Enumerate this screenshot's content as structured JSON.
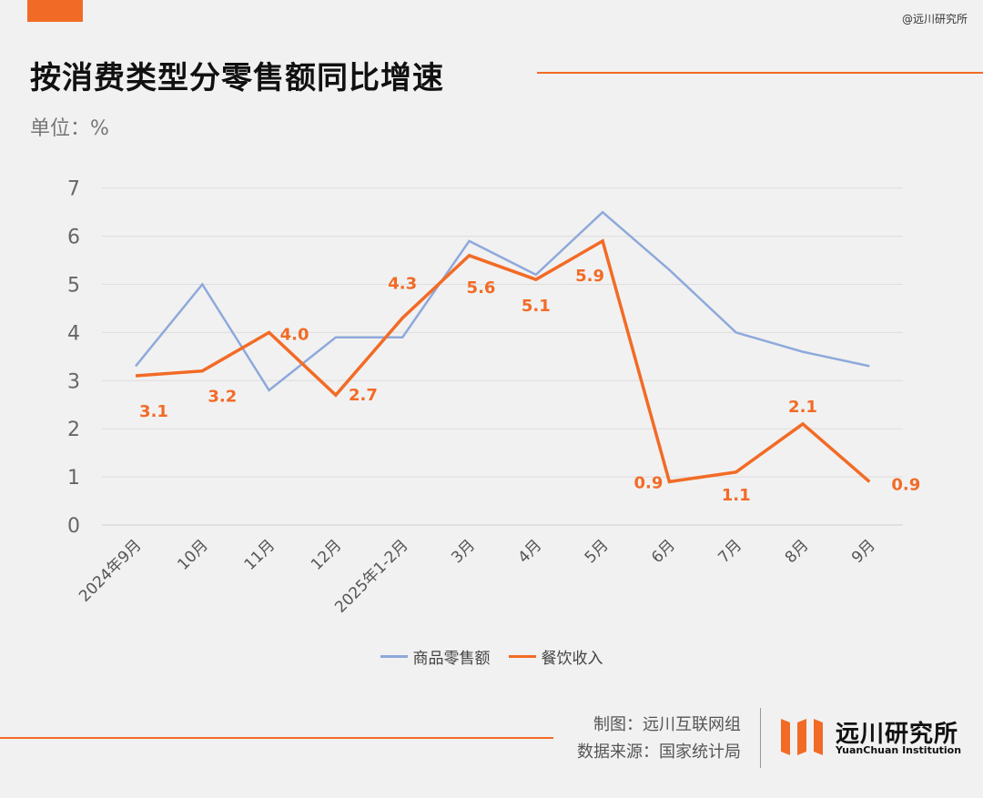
{
  "watermark": "@远川研究所",
  "title": "按消费类型分零售额同比增速",
  "unit_label": "单位：%",
  "credits": {
    "made_by": "制图：远川互联网组",
    "source": "数据来源：国家统计局"
  },
  "logo": {
    "name_cn": "远川研究所",
    "name_en": "YuanChuan Institution"
  },
  "colors": {
    "accent": "#f26b26",
    "series1": "#8ea9db",
    "series2": "#f26b26"
  },
  "chart_data": {
    "type": "line",
    "categories": [
      "2024年9月",
      "10月",
      "11月",
      "12月",
      "2025年1-2月",
      "3月",
      "4月",
      "5月",
      "6月",
      "7月",
      "8月",
      "9月"
    ],
    "ylim": [
      0,
      7
    ],
    "yticks": [
      "0",
      "1",
      "2",
      "3",
      "4",
      "5",
      "6",
      "7"
    ],
    "grid": true,
    "legend_position": "bottom",
    "series": [
      {
        "name": "商品零售额",
        "values": [
          3.3,
          5.0,
          2.8,
          3.9,
          3.9,
          5.9,
          5.2,
          6.5,
          5.3,
          4.0,
          3.6,
          3.3
        ],
        "labels": null
      },
      {
        "name": "餐饮收入",
        "values": [
          3.1,
          3.2,
          4.0,
          2.7,
          4.3,
          5.6,
          5.1,
          5.9,
          0.9,
          1.1,
          2.1,
          0.9
        ],
        "labels": [
          "3.1",
          "3.2",
          "4.0",
          "2.7",
          "4.3",
          "5.6",
          "5.1",
          "5.9",
          "0.9",
          "1.1",
          "2.1",
          "0.9"
        ]
      }
    ]
  }
}
